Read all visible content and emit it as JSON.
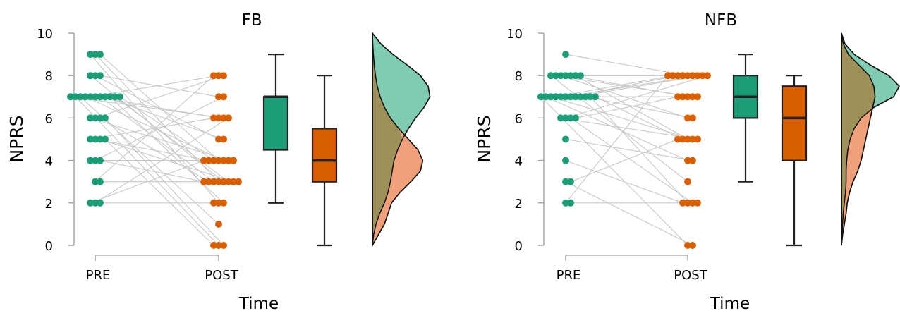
{
  "colors": {
    "pre": "#1B9E77",
    "post": "#D95F02",
    "pre_density_fill": "#7FCCB2",
    "post_density_fill": "#F0A07A",
    "overlap_fill": "#9E9059",
    "connector": "#c8c8c8"
  },
  "chart_data": [
    {
      "type": "raincloud",
      "title": "FB",
      "ylabel": "NPRS",
      "xlabel": "Time",
      "categories": [
        "PRE",
        "POST"
      ],
      "ylim": [
        0,
        10
      ],
      "yticks": [
        0,
        2,
        4,
        6,
        8,
        10
      ],
      "paired": [
        [
          9,
          3
        ],
        [
          9,
          4
        ],
        [
          9,
          2
        ],
        [
          8,
          5
        ],
        [
          8,
          7
        ],
        [
          8,
          3
        ],
        [
          7,
          6
        ],
        [
          7,
          3
        ],
        [
          7,
          8
        ],
        [
          7,
          5
        ],
        [
          7,
          4
        ],
        [
          7,
          2
        ],
        [
          7,
          1
        ],
        [
          7,
          3
        ],
        [
          7,
          0
        ],
        [
          7,
          4
        ],
        [
          7,
          6
        ],
        [
          6,
          8
        ],
        [
          6,
          3
        ],
        [
          6,
          4
        ],
        [
          6,
          0
        ],
        [
          5,
          4
        ],
        [
          5,
          3
        ],
        [
          5,
          6
        ],
        [
          5,
          0
        ],
        [
          4,
          7
        ],
        [
          4,
          3
        ],
        [
          4,
          4
        ],
        [
          3,
          8
        ],
        [
          3,
          3
        ],
        [
          2,
          6
        ],
        [
          2,
          2
        ],
        [
          2,
          4
        ]
      ],
      "boxplots": [
        {
          "name": "PRE",
          "min": 2,
          "q1": 4.5,
          "median": 7,
          "q3": 7,
          "max": 9
        },
        {
          "name": "POST",
          "min": 0,
          "q1": 3,
          "median": 4,
          "q3": 5.5,
          "max": 8
        }
      ],
      "densities": {
        "y": [
          0,
          0.5,
          1,
          1.5,
          2,
          2.5,
          3,
          3.5,
          4,
          4.5,
          5,
          5.5,
          6,
          6.5,
          7,
          7.5,
          8,
          8.5,
          9,
          9.5,
          10
        ],
        "pre": [
          0,
          0.02,
          0.06,
          0.12,
          0.2,
          0.26,
          0.3,
          0.33,
          0.36,
          0.42,
          0.5,
          0.6,
          0.72,
          0.86,
          0.96,
          0.93,
          0.8,
          0.58,
          0.34,
          0.14,
          0
        ],
        "post": [
          0,
          0.1,
          0.2,
          0.26,
          0.32,
          0.46,
          0.64,
          0.8,
          0.84,
          0.76,
          0.6,
          0.44,
          0.3,
          0.2,
          0.13,
          0.08,
          0.05,
          0.03,
          0.015,
          0.005,
          0
        ]
      }
    },
    {
      "type": "raincloud",
      "title": "NFB",
      "ylabel": "NPRS",
      "xlabel": "Time",
      "categories": [
        "PRE",
        "POST"
      ],
      "ylim": [
        0,
        10
      ],
      "yticks": [
        0,
        2,
        4,
        6,
        8,
        10
      ],
      "paired": [
        [
          9,
          8
        ],
        [
          8,
          8
        ],
        [
          8,
          7
        ],
        [
          8,
          6
        ],
        [
          8,
          5
        ],
        [
          8,
          7
        ],
        [
          8,
          8
        ],
        [
          8,
          3
        ],
        [
          7,
          8
        ],
        [
          7,
          8
        ],
        [
          7,
          7
        ],
        [
          7,
          8
        ],
        [
          7,
          8
        ],
        [
          7,
          7
        ],
        [
          7,
          5
        ],
        [
          7,
          6
        ],
        [
          7,
          4
        ],
        [
          7,
          2
        ],
        [
          7,
          0
        ],
        [
          7,
          5
        ],
        [
          6,
          8
        ],
        [
          6,
          2
        ],
        [
          6,
          5
        ],
        [
          6,
          7
        ],
        [
          5,
          4
        ],
        [
          4,
          2
        ],
        [
          3,
          0
        ],
        [
          3,
          5
        ],
        [
          2,
          8
        ],
        [
          2,
          2
        ]
      ],
      "boxplots": [
        {
          "name": "PRE",
          "min": 3,
          "q1": 6,
          "median": 7,
          "q3": 8,
          "max": 9
        },
        {
          "name": "POST",
          "min": 0,
          "q1": 4,
          "median": 6,
          "q3": 7.5,
          "max": 8
        }
      ],
      "densities": {
        "y": [
          0,
          0.5,
          1,
          1.5,
          2,
          2.5,
          3,
          3.5,
          4,
          4.5,
          5,
          5.5,
          6,
          6.5,
          7,
          7.5,
          8,
          8.5,
          9,
          9.5,
          10
        ],
        "pre": [
          0,
          0.01,
          0.02,
          0.03,
          0.05,
          0.07,
          0.08,
          0.08,
          0.09,
          0.11,
          0.15,
          0.22,
          0.34,
          0.56,
          0.9,
          1.0,
          0.82,
          0.5,
          0.22,
          0.06,
          0
        ],
        "post": [
          0,
          0.02,
          0.05,
          0.08,
          0.1,
          0.14,
          0.2,
          0.28,
          0.34,
          0.38,
          0.42,
          0.46,
          0.5,
          0.54,
          0.58,
          0.56,
          0.48,
          0.3,
          0.12,
          0.03,
          0
        ]
      }
    }
  ]
}
